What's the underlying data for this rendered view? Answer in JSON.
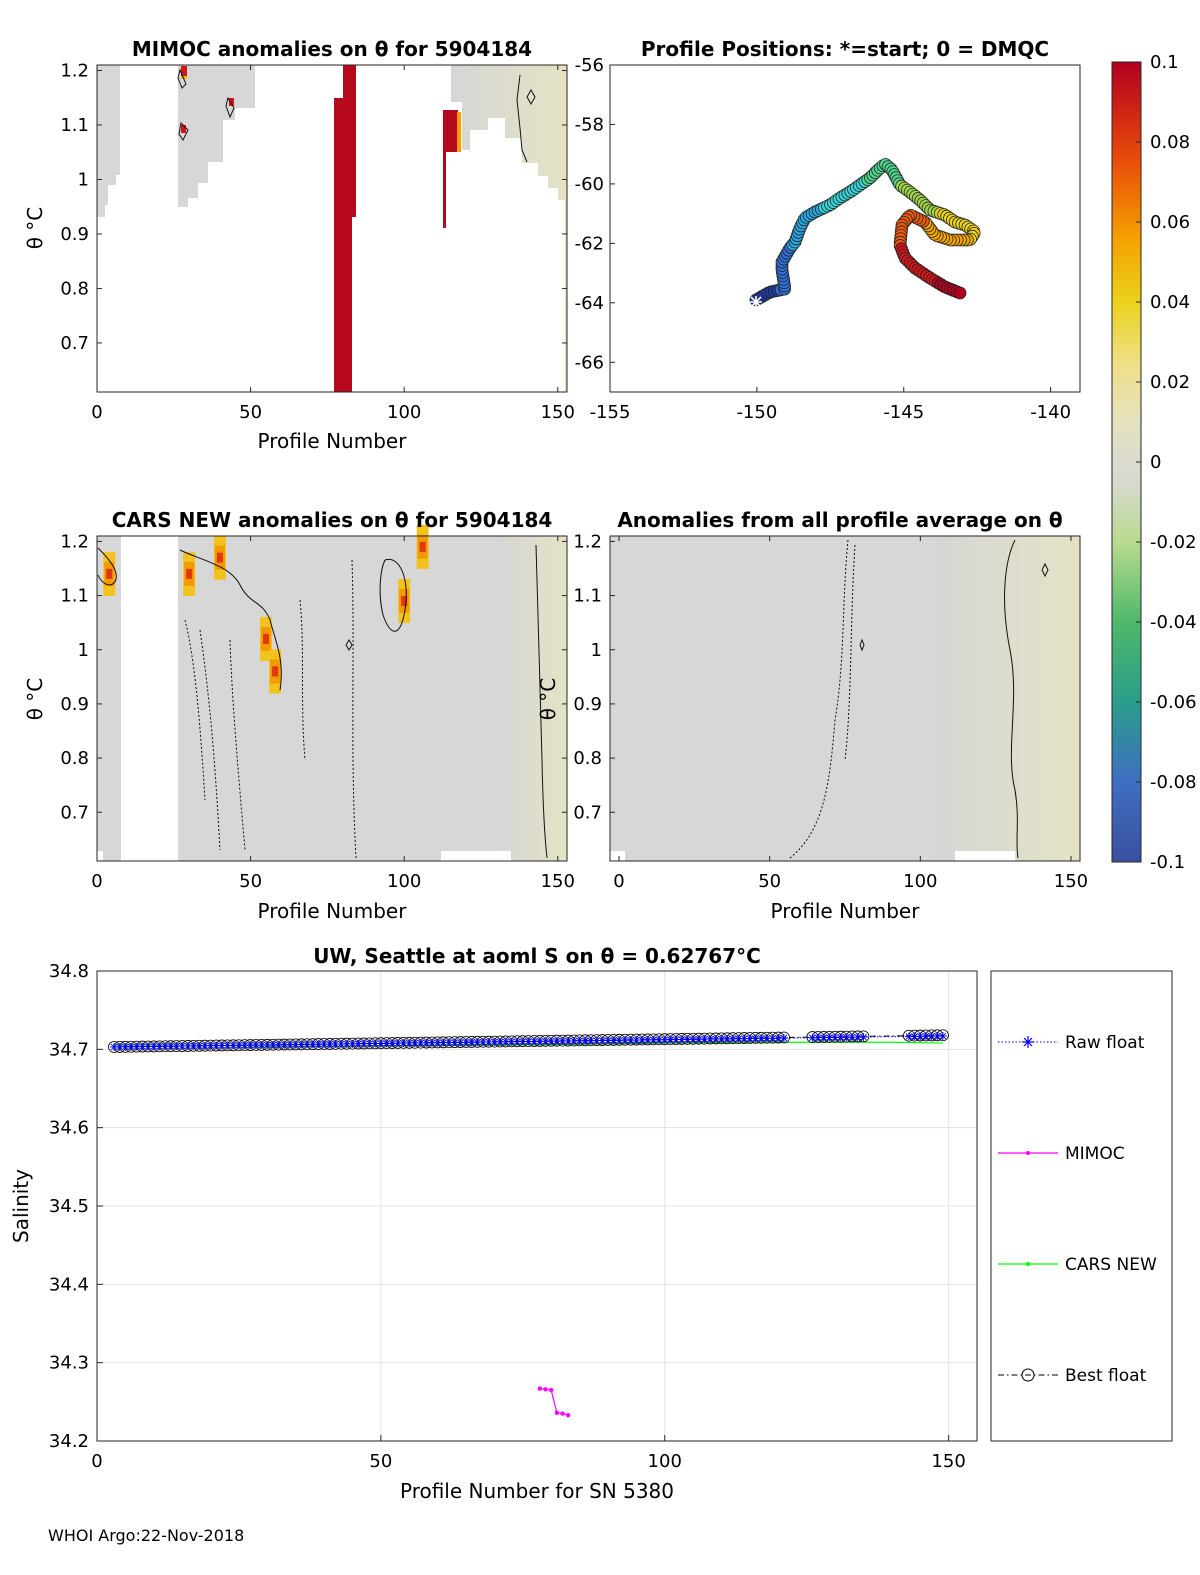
{
  "footer": "WHOI Argo:22-Nov-2018",
  "colors": {
    "anomaly_pos": "#b5081b",
    "field_neutral": "#d4d4d4",
    "field_warm": "#e3e2c6",
    "raw_float": "#0000ff",
    "mimoc": "#ff00ff",
    "cars_new": "#00ff00",
    "best_float": "#000000"
  },
  "chart_data": [
    {
      "id": "mimoc",
      "type": "heatmap",
      "title": "MIMOC anomalies on θ  for 5904184",
      "xlabel": "Profile Number",
      "ylabel": "θ °C",
      "xlim": [
        0,
        153
      ],
      "ylim": [
        0.61,
        1.21
      ],
      "xticks": [
        "0",
        "50",
        "100",
        "150"
      ],
      "yticks": [
        "0.7",
        "0.8",
        "0.9",
        "1",
        "1.1",
        "1.2"
      ],
      "patches": [
        {
          "x0": 77,
          "x1": 83,
          "y0": 0.61,
          "y1": 1.145,
          "value": 0.1
        },
        {
          "x0": 81,
          "x1": 85,
          "y0": 0.93,
          "y1": 1.21,
          "value": 0.1
        },
        {
          "x0": 113,
          "x1": 118,
          "y0": 0.91,
          "y1": 1.125,
          "value": 0.1
        }
      ]
    },
    {
      "id": "positions",
      "type": "scatter",
      "title": "Profile Positions: *=start; 0 = DMQC",
      "xlabel": "",
      "ylabel": "",
      "xlim": [
        -155,
        -139
      ],
      "ylim": [
        -67,
        -56
      ],
      "xticks": [
        "-155",
        "-150",
        "-145",
        "-140"
      ],
      "yticks": [
        "-56",
        "-58",
        "-60",
        "-62",
        "-64",
        "-66"
      ],
      "start": [
        -150,
        -63.9
      ]
    },
    {
      "id": "cars",
      "type": "heatmap",
      "title": "CARS NEW anomalies on θ for 5904184",
      "xlabel": "Profile Number",
      "ylabel": "θ °C",
      "xlim": [
        0,
        153
      ],
      "ylim": [
        0.61,
        1.21
      ],
      "xticks": [
        "0",
        "50",
        "100",
        "150"
      ],
      "yticks": [
        "0.7",
        "0.8",
        "0.9",
        "1",
        "1.1",
        "1.2"
      ],
      "hotspots": [
        {
          "x": 4,
          "y": 1.14,
          "value": 0.05
        },
        {
          "x": 30,
          "y": 1.14,
          "value": 0.05
        },
        {
          "x": 40,
          "y": 1.17,
          "value": 0.05
        },
        {
          "x": 55,
          "y": 1.02,
          "value": 0.05
        },
        {
          "x": 58,
          "y": 0.96,
          "value": 0.05
        },
        {
          "x": 100,
          "y": 1.09,
          "value": 0.05
        },
        {
          "x": 106,
          "y": 1.19,
          "value": 0.04
        }
      ]
    },
    {
      "id": "average",
      "type": "heatmap",
      "title": "Anomalies from all profile average on θ",
      "xlabel": "Profile Number",
      "ylabel": "",
      "xlim": [
        -3,
        153
      ],
      "ylim": [
        0.61,
        1.21
      ],
      "xticks": [
        "0",
        "50",
        "100",
        "150"
      ],
      "yticks": []
    },
    {
      "id": "colorbar",
      "type": "colorbar",
      "range": [
        -0.1,
        0.1
      ],
      "ticks": [
        "0.1",
        "0.08",
        "0.06",
        "0.04",
        "0.02",
        "0",
        "-0.02",
        "-0.04",
        "-0.06",
        "-0.08",
        "-0.1"
      ]
    },
    {
      "id": "salinity",
      "type": "line",
      "title": "UW, Seattle at aoml S on θ = 0.62767°C",
      "xlabel": "Profile Number for SN 5380",
      "ylabel": "Salinity",
      "xlim": [
        0,
        155
      ],
      "ylim": [
        34.2,
        34.8
      ],
      "xticks": [
        "0",
        "50",
        "100",
        "150"
      ],
      "yticks": [
        "34.8",
        "34.7",
        "34.6",
        "34.5",
        "34.4",
        "34.3",
        "34.2"
      ],
      "legend": [
        "Raw float",
        "MIMOC",
        "CARS NEW",
        "Best float"
      ],
      "series": [
        {
          "name": "MIMOC",
          "x": [
            78,
            79,
            80,
            81,
            82,
            83
          ],
          "y": [
            34.267,
            34.266,
            34.265,
            34.236,
            34.235,
            34.233
          ]
        },
        {
          "name": "CARS NEW",
          "x": [
            3,
            20,
            40,
            60,
            80,
            100,
            120,
            140,
            149
          ],
          "y": [
            34.704,
            34.705,
            34.704,
            34.705,
            34.706,
            34.708,
            34.709,
            34.709,
            34.708
          ]
        },
        {
          "name": "Raw float",
          "x_range": [
            3,
            149
          ],
          "y_start": 34.703,
          "y_end": 34.717
        },
        {
          "name": "Best float",
          "x_range": [
            3,
            149
          ],
          "y_start": 34.703,
          "y_end": 34.718
        }
      ]
    }
  ]
}
